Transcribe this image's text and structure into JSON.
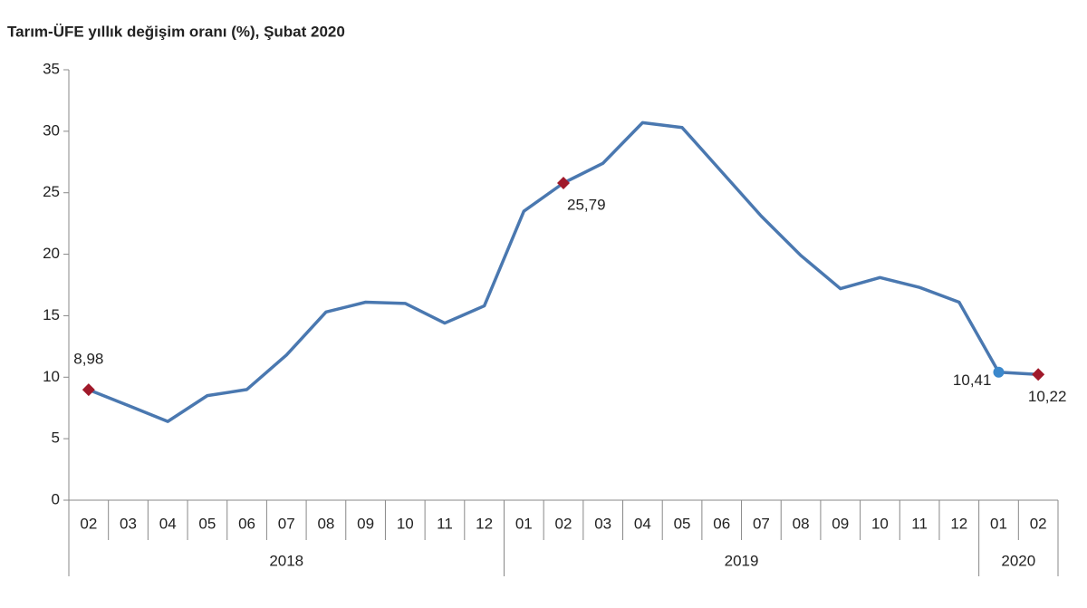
{
  "chart_data": {
    "type": "line",
    "title": "Tarım-ÜFE yıllık değişim oranı (%), Şubat 2020",
    "categories": [
      "02",
      "03",
      "04",
      "05",
      "06",
      "07",
      "08",
      "09",
      "10",
      "11",
      "12",
      "01",
      "02",
      "03",
      "04",
      "05",
      "06",
      "07",
      "08",
      "09",
      "10",
      "11",
      "12",
      "01",
      "02"
    ],
    "groups": [
      {
        "label": "2018",
        "span": 11
      },
      {
        "label": "2019",
        "span": 12
      },
      {
        "label": "2020",
        "span": 2
      }
    ],
    "series": [
      {
        "color": "#4a78b0",
        "values": [
          8.98,
          7.7,
          6.4,
          8.5,
          9.0,
          11.8,
          15.3,
          16.1,
          16.0,
          14.4,
          15.8,
          23.5,
          25.79,
          27.4,
          30.7,
          30.3,
          26.7,
          23.1,
          19.9,
          17.2,
          18.1,
          17.3,
          16.1,
          10.41,
          10.22
        ],
        "value_labels": [
          "8,98",
          null,
          null,
          null,
          null,
          null,
          null,
          null,
          null,
          null,
          null,
          null,
          "25,79",
          null,
          null,
          null,
          null,
          null,
          null,
          null,
          null,
          null,
          null,
          "10,41",
          "10,22"
        ],
        "marker_colors": [
          "#a0192a",
          null,
          null,
          null,
          null,
          null,
          null,
          null,
          null,
          null,
          null,
          null,
          "#a0192a",
          null,
          null,
          null,
          null,
          null,
          null,
          null,
          null,
          null,
          null,
          "#3b88cc",
          "#a0192a"
        ]
      }
    ],
    "ylim": [
      0,
      35
    ],
    "yticks": [
      0,
      5,
      10,
      15,
      20,
      25,
      30,
      35
    ],
    "grid": false
  }
}
